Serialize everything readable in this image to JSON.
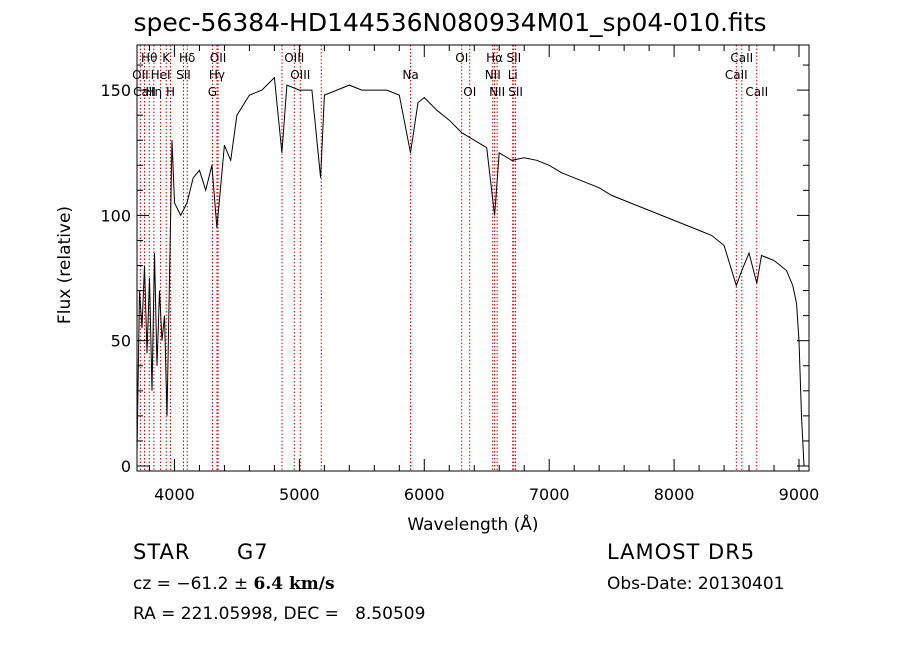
{
  "title": "spec-56384-HD144536N080934M01_sp04-010.fits",
  "footer": {
    "class_label": "STAR",
    "subclass": "G7",
    "survey": "LAMOST DR5",
    "cz_prefix": "cz = −61.2 ±",
    "cz_error": "6.4 km/s",
    "obs_date": "Obs-Date: 20130401",
    "coords": "RA = 221.05998, DEC =   8.50509"
  },
  "chart_data": {
    "type": "line",
    "xlabel": "Wavelength (Å)",
    "ylabel": "Flux (relative)",
    "xlim": [
      3700,
      9080
    ],
    "ylim": [
      -2,
      168
    ],
    "xticks": [
      4000,
      5000,
      6000,
      7000,
      8000,
      9000
    ],
    "yticks": [
      0,
      50,
      100,
      150
    ],
    "grid": false,
    "line_color": "#000000",
    "marker_color": "#cc0000",
    "series": [
      {
        "x": [
          3700,
          3720,
          3740,
          3760,
          3780,
          3800,
          3820,
          3840,
          3860,
          3880,
          3900,
          3920,
          3940,
          3960,
          3980,
          4000,
          4050,
          4100,
          4150,
          4200,
          4250,
          4300,
          4340,
          4400,
          4450,
          4500,
          4600,
          4700,
          4800,
          4860,
          4900,
          5000,
          5100,
          5170,
          5200,
          5300,
          5400,
          5500,
          5600,
          5700,
          5800,
          5890,
          5950,
          6000,
          6100,
          6200,
          6300,
          6400,
          6500,
          6563,
          6600,
          6700,
          6800,
          6900,
          7000,
          7100,
          7200,
          7300,
          7400,
          7500,
          7600,
          7700,
          7800,
          7900,
          8000,
          8100,
          8200,
          8300,
          8400,
          8498,
          8542,
          8600,
          8662,
          8700,
          8750,
          8800,
          8850,
          8900,
          8950,
          8980,
          9000,
          9020,
          9040
        ],
        "y": [
          5,
          70,
          55,
          80,
          45,
          75,
          30,
          85,
          40,
          70,
          50,
          60,
          20,
          75,
          130,
          105,
          100,
          105,
          115,
          118,
          110,
          120,
          95,
          128,
          122,
          140,
          148,
          150,
          155,
          125,
          152,
          150,
          150,
          115,
          148,
          150,
          152,
          150,
          150,
          150,
          148,
          125,
          145,
          147,
          142,
          138,
          133,
          130,
          127,
          100,
          125,
          122,
          123,
          122,
          120,
          117,
          115,
          113,
          111,
          108,
          106,
          104,
          102,
          100,
          98,
          96,
          94,
          92,
          88,
          72,
          78,
          85,
          73,
          84,
          83,
          82,
          80,
          78,
          72,
          65,
          50,
          20,
          0
        ]
      }
    ],
    "lines": [
      {
        "label": "Hθ",
        "wl": 3798,
        "row": 1
      },
      {
        "label": "K",
        "wl": 3934,
        "row": 1
      },
      {
        "label": "Hδ",
        "wl": 4102,
        "row": 1
      },
      {
        "label": "OII",
        "wl": 4349,
        "row": 1
      },
      {
        "label": "OIII",
        "wl": 4959,
        "row": 1
      },
      {
        "label": "OI",
        "wl": 6300,
        "row": 1
      },
      {
        "label": "Hα",
        "wl": 6563,
        "row": 1
      },
      {
        "label": "SII",
        "wl": 6717,
        "row": 1
      },
      {
        "label": "CaII",
        "wl": 8542,
        "row": 1
      },
      {
        "label": "OII",
        "wl": 3727,
        "row": 2
      },
      {
        "label": "HeI",
        "wl": 3889,
        "row": 2
      },
      {
        "label": "SII",
        "wl": 4072,
        "row": 2
      },
      {
        "label": "Hγ",
        "wl": 4340,
        "row": 2
      },
      {
        "label": "OIII",
        "wl": 5007,
        "row": 2
      },
      {
        "label": "Na",
        "wl": 5890,
        "row": 2
      },
      {
        "label": "NII",
        "wl": 6548,
        "row": 2
      },
      {
        "label": "Li",
        "wl": 6708,
        "row": 2
      },
      {
        "label": "CaII",
        "wl": 8498,
        "row": 2
      },
      {
        "label": "CaII",
        "wl": 3760,
        "row": 3
      },
      {
        "label": "Hη",
        "wl": 3835,
        "row": 3
      },
      {
        "label": "H",
        "wl": 3968,
        "row": 3
      },
      {
        "label": "G",
        "wl": 4304,
        "row": 3
      },
      {
        "label": "OI",
        "wl": 6364,
        "row": 3
      },
      {
        "label": "NII",
        "wl": 6583,
        "row": 3
      },
      {
        "label": "SII",
        "wl": 6731,
        "row": 3
      },
      {
        "label": "CaII",
        "wl": 8662,
        "row": 3
      },
      {
        "label": "",
        "wl": 4861,
        "row": 0
      },
      {
        "label": "",
        "wl": 5175,
        "row": 0
      }
    ]
  }
}
